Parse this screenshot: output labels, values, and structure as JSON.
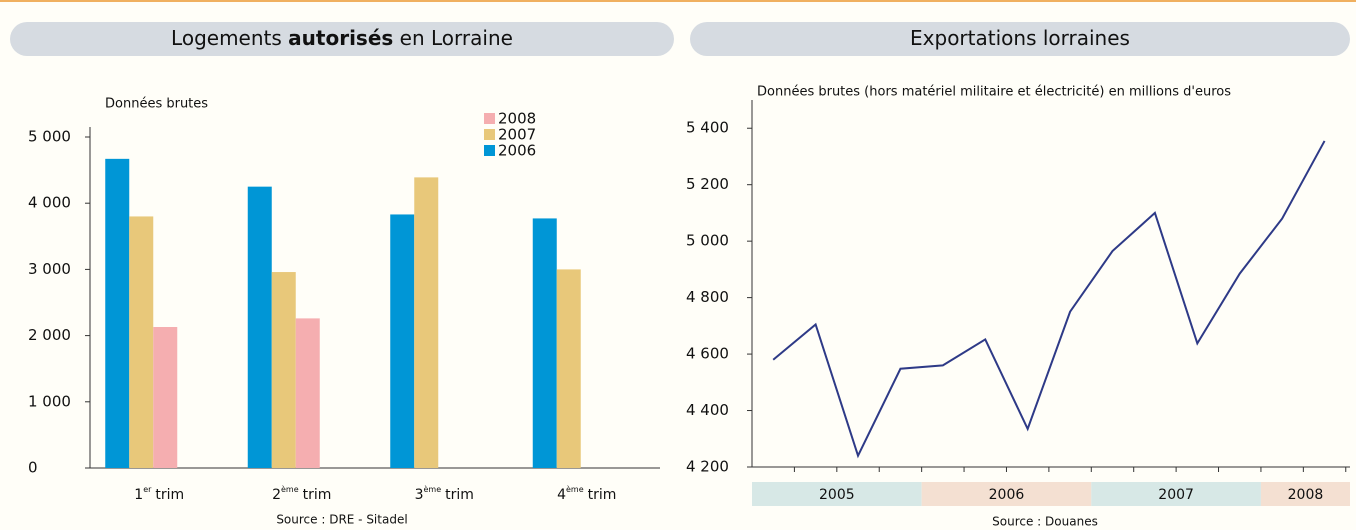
{
  "chart_data": [
    {
      "type": "bar",
      "title": [
        "Logements",
        "autorisés",
        "en Lorraine"
      ],
      "subtitle": "Données brutes",
      "source": "Source : DRE - Sitadel",
      "categories": [
        {
          "num": "1",
          "sup": "er",
          "text": "trim"
        },
        {
          "num": "2",
          "sup": "ème",
          "text": "trim"
        },
        {
          "num": "3",
          "sup": "ème",
          "text": "trim"
        },
        {
          "num": "4",
          "sup": "ème",
          "text": "trim"
        }
      ],
      "series": [
        {
          "name": "2006",
          "color": "#0096d6",
          "values": [
            4670,
            4250,
            3830,
            3770
          ]
        },
        {
          "name": "2007",
          "color": "#e8c87a",
          "values": [
            3800,
            2960,
            4390,
            3000
          ]
        },
        {
          "name": "2008",
          "color": "#f5aeb0",
          "values": [
            2130,
            2260,
            null,
            null
          ]
        }
      ],
      "ylim": [
        0,
        5000
      ],
      "yticks": [
        0,
        {
          "value": 1000,
          "label": "1 000"
        },
        {
          "value": 2000,
          "label": "2 000"
        },
        {
          "value": 3000,
          "label": "3 000"
        },
        {
          "value": 4000,
          "label": "4 000"
        },
        {
          "value": 5000,
          "label": "5 000"
        }
      ],
      "legend": "upper right"
    },
    {
      "type": "line",
      "title": [
        "Exportations lorraines"
      ],
      "subtitle": "Données brutes (hors matériel militaire et électricité) en millions d'euros",
      "source": "Source : Douanes",
      "categories": [
        "2005",
        "2005",
        "2005",
        "2005",
        "2006",
        "2006",
        "2006",
        "2006",
        "2007",
        "2007",
        "2007",
        "2007",
        "2008",
        "2008"
      ],
      "series": [
        {
          "name": "Exportations",
          "color": "#2e3a87",
          "values": [
            4580,
            4705,
            4240,
            4548,
            4560,
            4652,
            4335,
            4750,
            4965,
            5100,
            4638,
            4885,
            5080,
            5355
          ]
        }
      ],
      "band_colors": [
        "#d7e8e6",
        "#f4e0d2"
      ],
      "ylim": [
        4200,
        5500
      ],
      "yticks": [
        {
          "value": 4200,
          "label": "4 200"
        },
        {
          "value": 4400,
          "label": "4 400"
        },
        {
          "value": 4600,
          "label": "4 600"
        },
        {
          "value": 4800,
          "label": "4 800"
        },
        {
          "value": 5000,
          "label": "5 000"
        },
        {
          "value": 5200,
          "label": "5 200"
        },
        {
          "value": 5400,
          "label": "5 400"
        }
      ]
    }
  ]
}
